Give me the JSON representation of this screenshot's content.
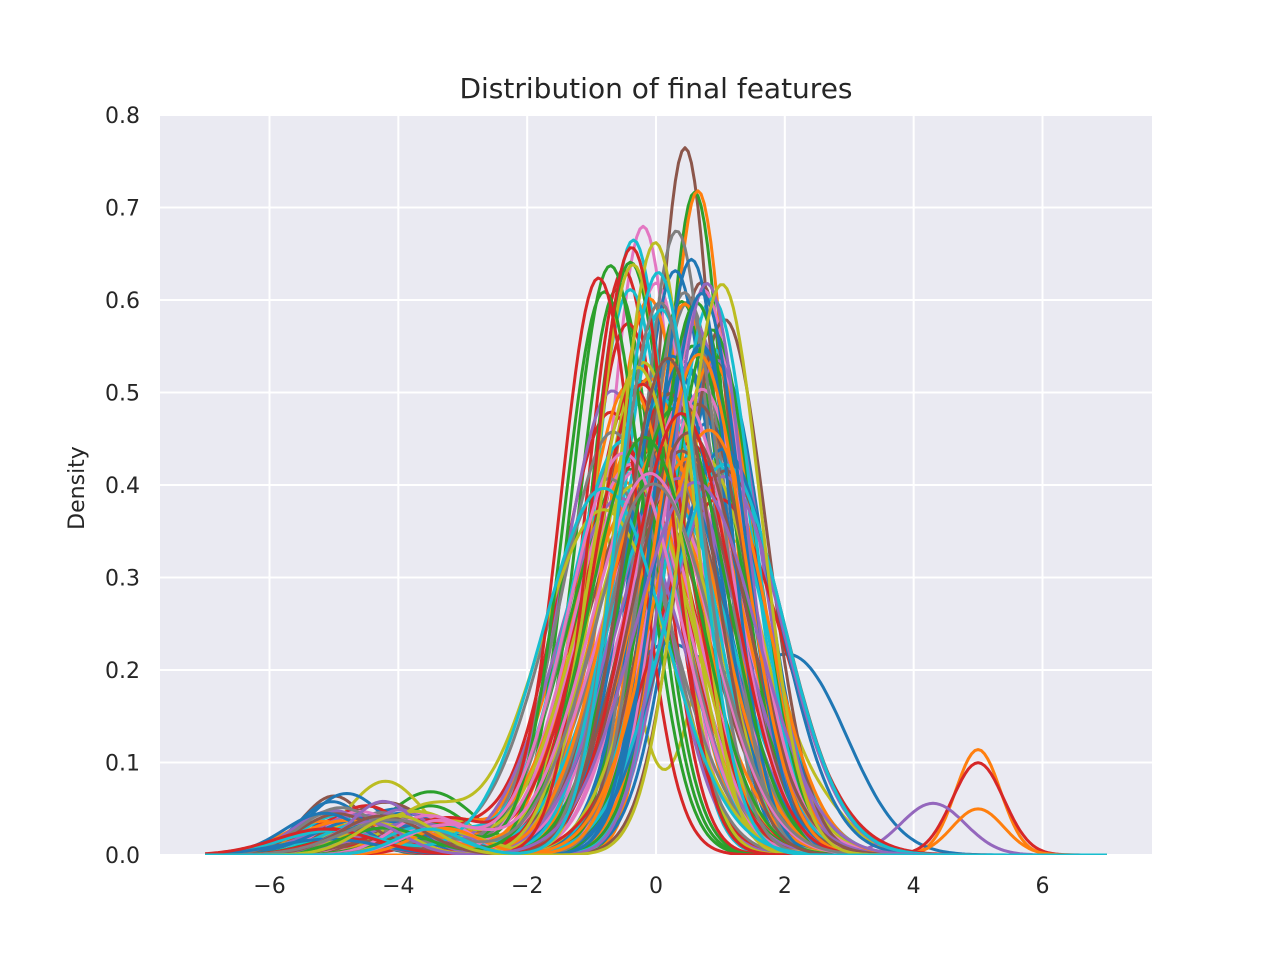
{
  "chart_data": {
    "type": "line",
    "title": "Distribution of final features",
    "xlabel": "",
    "ylabel": "Density",
    "xlim": [
      -7.7,
      7.7
    ],
    "ylim": [
      0.0,
      0.8
    ],
    "xticks": [
      {
        "value": -6,
        "label": "−6"
      },
      {
        "value": -4,
        "label": "−4"
      },
      {
        "value": -2,
        "label": "−2"
      },
      {
        "value": 0,
        "label": "0"
      },
      {
        "value": 2,
        "label": "2"
      },
      {
        "value": 4,
        "label": "4"
      },
      {
        "value": 6,
        "label": "6"
      }
    ],
    "yticks": [
      {
        "value": 0.0,
        "label": "0.0"
      },
      {
        "value": 0.1,
        "label": "0.1"
      },
      {
        "value": 0.2,
        "label": "0.2"
      },
      {
        "value": 0.3,
        "label": "0.3"
      },
      {
        "value": 0.4,
        "label": "0.4"
      },
      {
        "value": 0.5,
        "label": "0.5"
      },
      {
        "value": 0.6,
        "label": "0.6"
      },
      {
        "value": 0.7,
        "label": "0.7"
      },
      {
        "value": 0.8,
        "label": "0.8"
      }
    ],
    "grid": true,
    "legend": "none",
    "x_sample_range": [
      -7.0,
      7.0
    ],
    "background_color": "#eaeaf2",
    "palette": [
      "#1f77b4",
      "#ff7f0e",
      "#2ca02c",
      "#d62728",
      "#9467bd",
      "#8c564b",
      "#e377c2",
      "#7f7f7f",
      "#bcbd22",
      "#17becf"
    ],
    "series_note_count": 120,
    "series": [
      {
        "color": "#8c564b",
        "components": [
          {
            "w": 0.92,
            "mu": 0.45,
            "sigma": 0.48
          },
          {
            "w": 0.08,
            "mu": -5.0,
            "sigma": 0.5
          }
        ]
      },
      {
        "color": "#2ca02c",
        "components": [
          {
            "w": 0.88,
            "mu": 0.6,
            "sigma": 0.49
          },
          {
            "w": 0.12,
            "mu": -3.5,
            "sigma": 0.7
          }
        ]
      },
      {
        "color": "#ff7f0e",
        "components": [
          {
            "w": 0.9,
            "mu": 0.65,
            "sigma": 0.5
          },
          {
            "w": 0.1,
            "mu": 5.0,
            "sigma": 0.35
          }
        ]
      },
      {
        "color": "#e377c2",
        "components": [
          {
            "w": 0.92,
            "mu": -0.2,
            "sigma": 0.54
          },
          {
            "w": 0.08,
            "mu": -4.5,
            "sigma": 0.6
          }
        ]
      },
      {
        "color": "#17becf",
        "components": [
          {
            "w": 0.95,
            "mu": -0.35,
            "sigma": 0.57
          },
          {
            "w": 0.05,
            "mu": -4.0,
            "sigma": 0.7
          }
        ]
      },
      {
        "color": "#1f77b4",
        "components": [
          {
            "w": 0.5,
            "mu": 0.1,
            "sigma": 0.9
          },
          {
            "w": 0.4,
            "mu": 2.2,
            "sigma": 0.8
          },
          {
            "w": 0.1,
            "mu": -4.0,
            "sigma": 0.8
          }
        ]
      },
      {
        "color": "#bcbd22",
        "components": [
          {
            "w": 0.45,
            "mu": -0.9,
            "sigma": 0.5
          },
          {
            "w": 0.45,
            "mu": 1.2,
            "sigma": 0.55
          },
          {
            "w": 0.1,
            "mu": 2.3,
            "sigma": 0.6
          }
        ]
      },
      {
        "color": "#bcbd22",
        "components": [
          {
            "w": 0.88,
            "mu": -0.3,
            "sigma": 0.72
          },
          {
            "w": 0.12,
            "mu": -4.2,
            "sigma": 0.6
          }
        ]
      },
      {
        "color": "#d62728",
        "components": [
          {
            "w": 0.9,
            "mu": 0.1,
            "sigma": 0.78
          },
          {
            "w": 0.1,
            "mu": 5.0,
            "sigma": 0.4
          }
        ]
      },
      {
        "color": "#9467bd",
        "components": [
          {
            "w": 0.93,
            "mu": 0.2,
            "sigma": 0.75
          },
          {
            "w": 0.07,
            "mu": 4.3,
            "sigma": 0.5
          }
        ]
      },
      {
        "color": "#17becf",
        "components": [
          {
            "w": 0.85,
            "mu": 0.9,
            "sigma": 0.62
          },
          {
            "w": 0.15,
            "mu": -0.9,
            "sigma": 0.4
          }
        ]
      },
      {
        "color": "#1f77b4",
        "components": [
          {
            "w": 0.9,
            "mu": 1.0,
            "sigma": 0.68
          },
          {
            "w": 0.1,
            "mu": -4.8,
            "sigma": 0.6
          }
        ]
      },
      {
        "color": "#ff7f0e",
        "components": [
          {
            "w": 0.95,
            "mu": -0.3,
            "sigma": 0.85
          },
          {
            "w": 0.05,
            "mu": 5.0,
            "sigma": 0.4
          }
        ]
      },
      {
        "color": "#2ca02c",
        "components": [
          {
            "w": 0.92,
            "mu": -0.6,
            "sigma": 0.6
          },
          {
            "w": 0.08,
            "mu": -3.5,
            "sigma": 0.6
          }
        ]
      },
      {
        "color": "#7f7f7f",
        "components": [
          {
            "w": 0.93,
            "mu": 0.5,
            "sigma": 0.62
          },
          {
            "w": 0.07,
            "mu": -5.0,
            "sigma": 0.6
          }
        ]
      },
      {
        "color": "#8c564b",
        "components": [
          {
            "w": 0.9,
            "mu": 0.7,
            "sigma": 0.58
          },
          {
            "w": 0.1,
            "mu": -4.2,
            "sigma": 0.7
          }
        ]
      },
      {
        "color": "#e377c2",
        "components": [
          {
            "w": 0.93,
            "mu": 0.0,
            "sigma": 0.6
          },
          {
            "w": 0.07,
            "mu": -3.8,
            "sigma": 0.6
          }
        ]
      },
      {
        "color": "#d62728",
        "components": [
          {
            "w": 0.92,
            "mu": -0.5,
            "sigma": 0.58
          },
          {
            "w": 0.08,
            "mu": -4.5,
            "sigma": 0.6
          }
        ]
      },
      {
        "color": "#1f77b4",
        "components": [
          {
            "w": 0.95,
            "mu": 0.3,
            "sigma": 0.6
          },
          {
            "w": 0.05,
            "mu": -5.2,
            "sigma": 0.6
          }
        ]
      },
      {
        "color": "#ff7f0e",
        "components": [
          {
            "w": 0.95,
            "mu": -0.1,
            "sigma": 0.63
          },
          {
            "w": 0.05,
            "mu": -3.2,
            "sigma": 0.6
          }
        ]
      },
      {
        "color": "#2ca02c",
        "components": [
          {
            "w": 0.96,
            "mu": 0.4,
            "sigma": 0.64
          },
          {
            "w": 0.04,
            "mu": -4.0,
            "sigma": 0.6
          }
        ]
      },
      {
        "color": "#17becf",
        "components": [
          {
            "w": 0.95,
            "mu": -0.4,
            "sigma": 0.62
          },
          {
            "w": 0.05,
            "mu": -3.6,
            "sigma": 0.6
          }
        ]
      },
      {
        "color": "#9467bd",
        "components": [
          {
            "w": 0.95,
            "mu": 0.6,
            "sigma": 0.66
          },
          {
            "w": 0.05,
            "mu": -4.6,
            "sigma": 0.6
          }
        ]
      },
      {
        "color": "#bcbd22",
        "components": [
          {
            "w": 0.94,
            "mu": 0.2,
            "sigma": 0.7
          },
          {
            "w": 0.06,
            "mu": -3.3,
            "sigma": 0.6
          }
        ]
      },
      {
        "color": "#8c564b",
        "components": [
          {
            "w": 0.95,
            "mu": -0.2,
            "sigma": 0.74
          },
          {
            "w": 0.05,
            "mu": -4.4,
            "sigma": 0.6
          }
        ]
      },
      {
        "color": "#e377c2",
        "components": [
          {
            "w": 0.95,
            "mu": 0.5,
            "sigma": 0.8
          },
          {
            "w": 0.05,
            "mu": -4.0,
            "sigma": 0.6
          }
        ]
      },
      {
        "color": "#d62728",
        "components": [
          {
            "w": 0.96,
            "mu": -0.7,
            "sigma": 0.8
          },
          {
            "w": 0.04,
            "mu": -3.0,
            "sigma": 0.6
          }
        ]
      },
      {
        "color": "#1f77b4",
        "components": [
          {
            "w": 0.96,
            "mu": 0.8,
            "sigma": 0.82
          },
          {
            "w": 0.04,
            "mu": -3.8,
            "sigma": 0.6
          }
        ]
      },
      {
        "color": "#ff7f0e",
        "components": [
          {
            "w": 0.96,
            "mu": -0.5,
            "sigma": 0.95
          },
          {
            "w": 0.04,
            "mu": -4.2,
            "sigma": 0.6
          }
        ]
      },
      {
        "color": "#7f7f7f",
        "components": [
          {
            "w": 0.96,
            "mu": 0.0,
            "sigma": 0.9
          },
          {
            "w": 0.04,
            "mu": -3.4,
            "sigma": 0.6
          }
        ]
      }
    ]
  }
}
